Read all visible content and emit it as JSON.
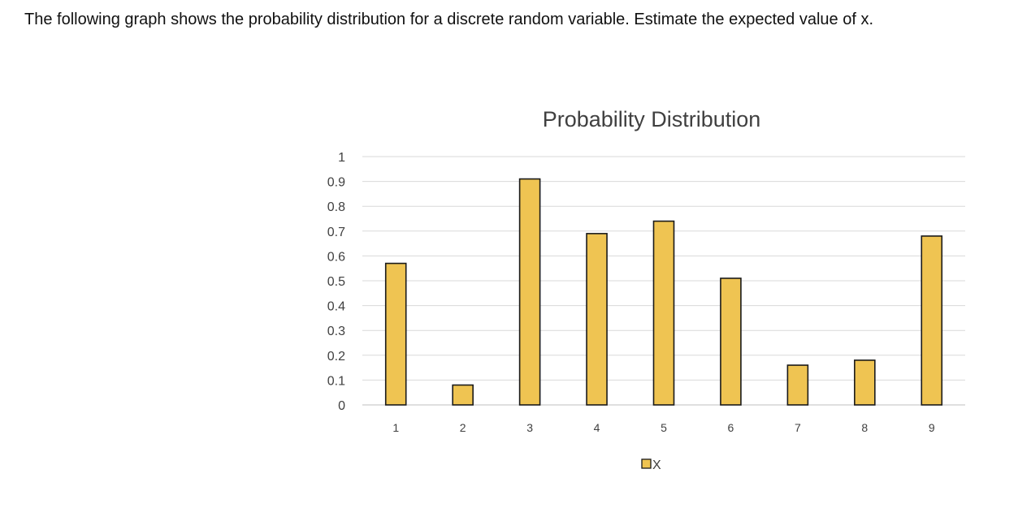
{
  "question": "The following graph shows the probability distribution for a discrete random variable. Estimate the expected value of x.",
  "chart_data": {
    "type": "bar",
    "title": "Probability Distribution",
    "xlabel": "",
    "ylabel": "",
    "categories": [
      "1",
      "2",
      "3",
      "4",
      "5",
      "6",
      "7",
      "8",
      "9"
    ],
    "series": [
      {
        "name": "X",
        "values": [
          0.57,
          0.08,
          0.91,
          0.69,
          0.74,
          0.51,
          0.16,
          0.18,
          0.68
        ]
      }
    ],
    "ylim": [
      0,
      1
    ],
    "yticks": [
      "0",
      "0.1",
      "0.2",
      "0.3",
      "0.4",
      "0.5",
      "0.6",
      "0.7",
      "0.8",
      "0.9",
      "1"
    ],
    "grid": true,
    "legend_position": "bottom",
    "colors": {
      "bar_fill": "#EFC452",
      "bar_stroke": "#1a1a1a",
      "grid": "#d9d9d9"
    }
  }
}
